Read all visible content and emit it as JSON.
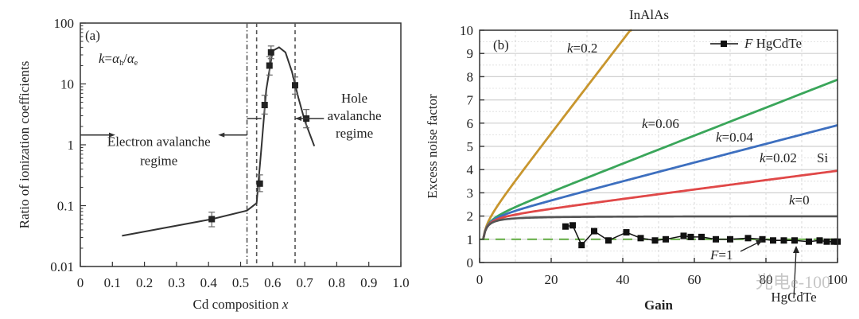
{
  "chart_data": [
    {
      "type": "line",
      "panel_label": "(a)",
      "title": "",
      "xlabel": "Cd composition x",
      "ylabel": "Ratio of ionization coefficients",
      "yscale": "log",
      "xlim": [
        0,
        1.0
      ],
      "ylim": [
        0.01,
        100
      ],
      "xticks": [
        "0",
        "0.1",
        "0.2",
        "0.3",
        "0.4",
        "0.5",
        "0.6",
        "0.7",
        "0.8",
        "0.9",
        "1.0"
      ],
      "yticks": [
        "0.01",
        "0.1",
        "1",
        "10",
        "100"
      ],
      "grid": false,
      "formula": "k=αh/αe",
      "annotations": {
        "electron_regime": [
          "Electron avalanche",
          "regime"
        ],
        "hole_regime": [
          "Hole",
          "avalanche",
          "regime"
        ]
      },
      "vertical_lines": [
        {
          "x": 0.52,
          "style": "dash-dot"
        },
        {
          "x": 0.55,
          "style": "dashed"
        },
        {
          "x": 0.67,
          "style": "dashed"
        }
      ],
      "series": [
        {
          "name": "fit",
          "x": [
            0.13,
            0.41,
            0.52,
            0.55,
            0.565,
            0.58,
            0.6,
            0.62,
            0.64,
            0.66,
            0.68,
            0.7,
            0.73
          ],
          "y": [
            0.032,
            0.06,
            0.083,
            0.11,
            0.9,
            8,
            35,
            40,
            33,
            16,
            6,
            2.5,
            0.95
          ]
        },
        {
          "name": "measured",
          "x": [
            0.41,
            0.56,
            0.575,
            0.59,
            0.595,
            0.67,
            0.705
          ],
          "y": [
            0.06,
            0.23,
            4.5,
            20,
            33,
            9.5,
            2.7
          ],
          "error_low": [
            0.045,
            0.17,
            3.2,
            14,
            26,
            6.8,
            1.9
          ],
          "error_high": [
            0.078,
            0.32,
            6.5,
            28,
            42,
            13,
            3.8
          ]
        }
      ]
    },
    {
      "type": "line",
      "panel_label": "(b)",
      "title": "InAlAs",
      "xlabel": "Gain",
      "ylabel": "Excess noise factor",
      "xlim": [
        0,
        100
      ],
      "ylim": [
        0,
        10
      ],
      "xticks": [
        "0",
        "20",
        "40",
        "60",
        "80",
        "100"
      ],
      "yticks": [
        "0",
        "1",
        "2",
        "3",
        "4",
        "5",
        "6",
        "7",
        "8",
        "9",
        "10"
      ],
      "grid": true,
      "legend": {
        "position": "top-right",
        "entries": [
          "F HgCdTe"
        ]
      },
      "labels": {
        "k02": "k=0.2",
        "k006": "k=0.06",
        "k004": "k=0.04",
        "k002": "k=0.02",
        "si": "Si",
        "k0": "k=0",
        "f1": "F=1",
        "hgcdte": "HgCdTe"
      },
      "series": [
        {
          "name": "k=0.2",
          "k": 0.2,
          "color": "#c8962e"
        },
        {
          "name": "k=0.06",
          "k": 0.06,
          "color": "#3aa65a"
        },
        {
          "name": "k=0.04",
          "k": 0.04,
          "color": "#3d6fbf"
        },
        {
          "name": "k=0.02",
          "k": 0.02,
          "color": "#e04848"
        },
        {
          "name": "k=0",
          "k": 0,
          "color": "#555555"
        },
        {
          "name": "F=1",
          "color": "#6ab04c",
          "style": "dashed",
          "constant": 1
        },
        {
          "name": "F HgCdTe",
          "color": "#111111",
          "x": [
            24,
            26,
            28.5,
            32,
            36,
            41,
            45,
            49,
            52,
            57,
            59,
            62,
            66,
            70,
            75,
            79,
            82,
            85,
            88,
            92,
            95,
            97,
            99,
            100
          ],
          "y": [
            1.55,
            1.6,
            0.75,
            1.35,
            0.95,
            1.3,
            1.05,
            0.95,
            1.0,
            1.15,
            1.1,
            1.1,
            1.0,
            1.0,
            1.05,
            1.0,
            0.95,
            0.95,
            0.95,
            0.9,
            0.95,
            0.9,
            0.9,
            0.9
          ]
        }
      ]
    }
  ],
  "watermark": "光电e-100"
}
